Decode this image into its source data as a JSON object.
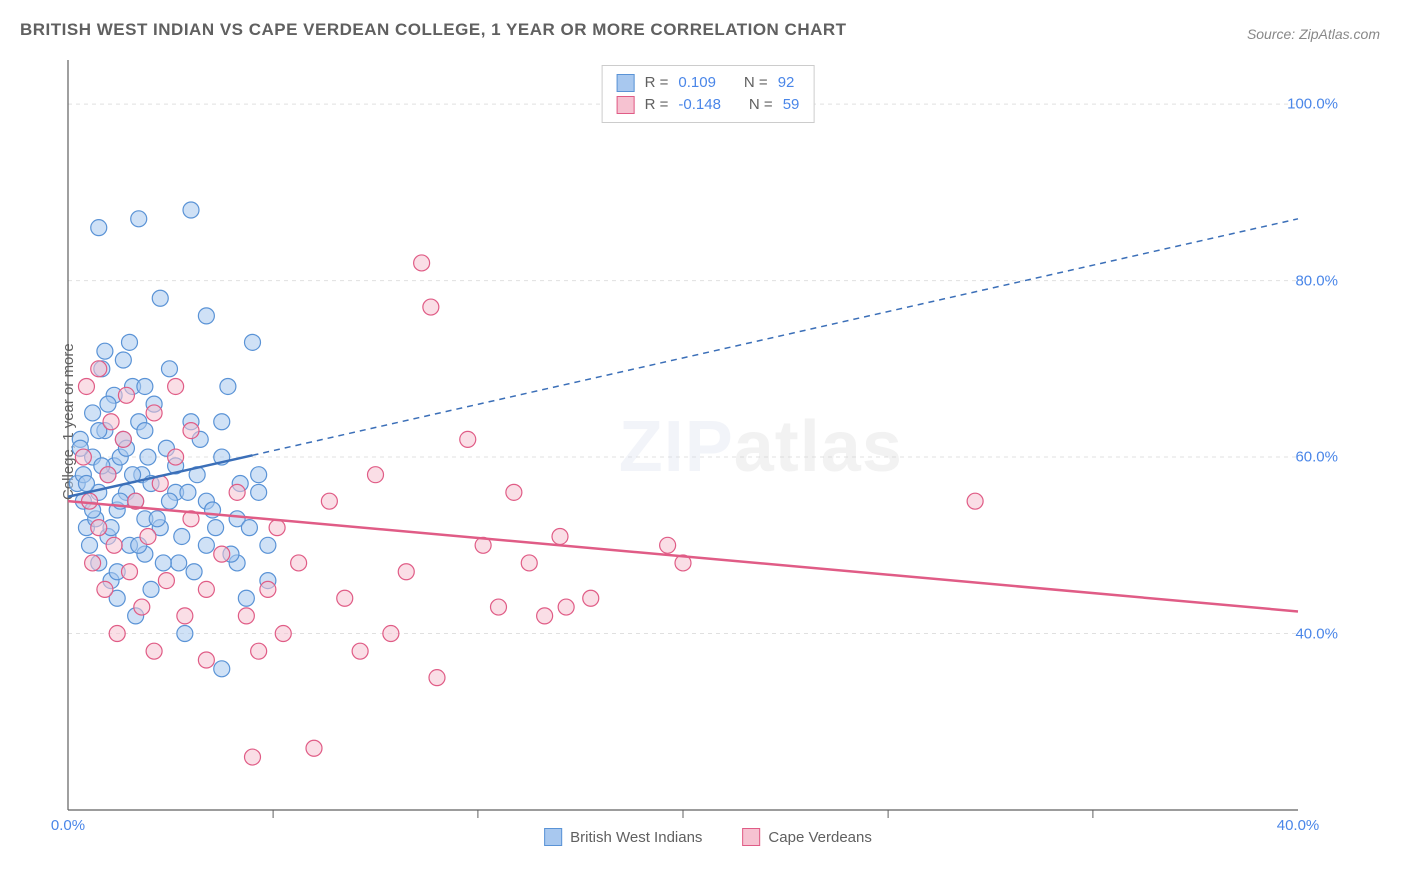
{
  "title": "BRITISH WEST INDIAN VS CAPE VERDEAN COLLEGE, 1 YEAR OR MORE CORRELATION CHART",
  "source": "Source: ZipAtlas.com",
  "ylabel": "College, 1 year or more",
  "watermark_a": "ZIP",
  "watermark_b": "atlas",
  "chart": {
    "type": "scatter",
    "xlim": [
      0,
      40
    ],
    "ylim": [
      20,
      105
    ],
    "y_ticks": [
      40,
      60,
      80,
      100
    ],
    "y_tick_labels": [
      "40.0%",
      "60.0%",
      "80.0%",
      "100.0%"
    ],
    "x_ticks": [
      0,
      40
    ],
    "x_tick_labels": [
      "0.0%",
      "40.0%"
    ],
    "x_minor_ticks": [
      6.67,
      13.33,
      20,
      26.67,
      33.33
    ],
    "grid_color": "#e0e0e0",
    "grid_dash": "4,4",
    "axis_color": "#606060",
    "background": "#ffffff",
    "legend_top": [
      {
        "swatch_fill": "#a8c8ef",
        "swatch_stroke": "#5a93d6",
        "r_label": "R =",
        "r_val": "0.109",
        "n_label": "N =",
        "n_val": "92"
      },
      {
        "swatch_fill": "#f6c2d1",
        "swatch_stroke": "#e05c86",
        "r_label": "R =",
        "r_val": "-0.148",
        "n_label": "N =",
        "n_val": "59"
      }
    ],
    "legend_bottom": [
      {
        "swatch_fill": "#a8c8ef",
        "swatch_stroke": "#5a93d6",
        "label": "British West Indians"
      },
      {
        "swatch_fill": "#f6c2d1",
        "swatch_stroke": "#e05c86",
        "label": "Cape Verdeans"
      }
    ],
    "series": [
      {
        "name": "British West Indians",
        "marker_fill": "#a8c8ef",
        "marker_fill_opacity": 0.55,
        "marker_stroke": "#5a93d6",
        "marker_radius": 8,
        "trend": {
          "x1": 0,
          "y1": 55.5,
          "x2": 6,
          "y2": 60.2,
          "x2_dash_end": 40,
          "y2_dash_end": 87,
          "color": "#3b6fb8",
          "width": 2.5
        },
        "points": [
          [
            0.3,
            57
          ],
          [
            0.4,
            62
          ],
          [
            0.5,
            55
          ],
          [
            0.5,
            58
          ],
          [
            0.6,
            52
          ],
          [
            0.7,
            50
          ],
          [
            0.8,
            65
          ],
          [
            0.8,
            60
          ],
          [
            0.9,
            53
          ],
          [
            1.0,
            56
          ],
          [
            1.0,
            48
          ],
          [
            1.1,
            70
          ],
          [
            1.2,
            72
          ],
          [
            1.2,
            63
          ],
          [
            1.3,
            51
          ],
          [
            1.3,
            58
          ],
          [
            1.4,
            46
          ],
          [
            1.5,
            59
          ],
          [
            1.5,
            67
          ],
          [
            1.6,
            54
          ],
          [
            1.6,
            44
          ],
          [
            1.7,
            60
          ],
          [
            1.8,
            71
          ],
          [
            1.8,
            62
          ],
          [
            1.9,
            56
          ],
          [
            2.0,
            73
          ],
          [
            2.0,
            50
          ],
          [
            2.1,
            68
          ],
          [
            2.2,
            55
          ],
          [
            2.2,
            42
          ],
          [
            2.3,
            87
          ],
          [
            2.3,
            64
          ],
          [
            2.4,
            58
          ],
          [
            2.5,
            53
          ],
          [
            2.5,
            49
          ],
          [
            2.6,
            60
          ],
          [
            2.7,
            45
          ],
          [
            2.8,
            66
          ],
          [
            3.0,
            52
          ],
          [
            3.0,
            78
          ],
          [
            3.2,
            61
          ],
          [
            3.3,
            70
          ],
          [
            3.5,
            56
          ],
          [
            3.6,
            48
          ],
          [
            3.8,
            40
          ],
          [
            4.0,
            88
          ],
          [
            4.0,
            64
          ],
          [
            4.2,
            58
          ],
          [
            4.5,
            76
          ],
          [
            4.5,
            55
          ],
          [
            4.8,
            52
          ],
          [
            5.0,
            60
          ],
          [
            5.0,
            36
          ],
          [
            5.2,
            68
          ],
          [
            5.5,
            53
          ],
          [
            5.5,
            48
          ],
          [
            5.8,
            44
          ],
          [
            6.0,
            73
          ],
          [
            6.2,
            56
          ],
          [
            6.5,
            50
          ],
          [
            0.4,
            61
          ],
          [
            0.6,
            57
          ],
          [
            0.8,
            54
          ],
          [
            1.0,
            63
          ],
          [
            1.1,
            59
          ],
          [
            1.3,
            66
          ],
          [
            1.4,
            52
          ],
          [
            1.6,
            47
          ],
          [
            1.7,
            55
          ],
          [
            1.9,
            61
          ],
          [
            2.1,
            58
          ],
          [
            2.3,
            50
          ],
          [
            2.5,
            63
          ],
          [
            2.7,
            57
          ],
          [
            2.9,
            53
          ],
          [
            3.1,
            48
          ],
          [
            3.3,
            55
          ],
          [
            3.5,
            59
          ],
          [
            3.7,
            51
          ],
          [
            3.9,
            56
          ],
          [
            4.1,
            47
          ],
          [
            4.3,
            62
          ],
          [
            4.5,
            50
          ],
          [
            4.7,
            54
          ],
          [
            5.0,
            64
          ],
          [
            5.3,
            49
          ],
          [
            5.6,
            57
          ],
          [
            5.9,
            52
          ],
          [
            6.2,
            58
          ],
          [
            6.5,
            46
          ],
          [
            1.0,
            86
          ],
          [
            2.5,
            68
          ]
        ]
      },
      {
        "name": "Cape Verdeans",
        "marker_fill": "#f6c2d1",
        "marker_fill_opacity": 0.55,
        "marker_stroke": "#e05c86",
        "marker_radius": 8,
        "trend": {
          "x1": 0,
          "y1": 55.0,
          "x2": 40,
          "y2": 42.5,
          "color": "#e05c86",
          "width": 2.5,
          "solid": true
        },
        "points": [
          [
            0.5,
            60
          ],
          [
            0.7,
            55
          ],
          [
            0.8,
            48
          ],
          [
            1.0,
            52
          ],
          [
            1.2,
            45
          ],
          [
            1.3,
            58
          ],
          [
            1.5,
            50
          ],
          [
            1.6,
            40
          ],
          [
            1.8,
            62
          ],
          [
            2.0,
            47
          ],
          [
            2.2,
            55
          ],
          [
            2.4,
            43
          ],
          [
            2.6,
            51
          ],
          [
            2.8,
            38
          ],
          [
            3.0,
            57
          ],
          [
            3.2,
            46
          ],
          [
            3.5,
            60
          ],
          [
            3.8,
            42
          ],
          [
            4.0,
            53
          ],
          [
            4.5,
            37
          ],
          [
            5.0,
            49
          ],
          [
            5.5,
            56
          ],
          [
            6.0,
            26
          ],
          [
            6.2,
            38
          ],
          [
            6.5,
            45
          ],
          [
            6.8,
            52
          ],
          [
            7.0,
            40
          ],
          [
            7.5,
            48
          ],
          [
            8.0,
            27
          ],
          [
            8.5,
            55
          ],
          [
            9.0,
            44
          ],
          [
            9.5,
            38
          ],
          [
            10.0,
            58
          ],
          [
            10.5,
            40
          ],
          [
            11.0,
            47
          ],
          [
            11.5,
            82
          ],
          [
            11.8,
            77
          ],
          [
            12.0,
            35
          ],
          [
            13.0,
            62
          ],
          [
            13.5,
            50
          ],
          [
            14.0,
            43
          ],
          [
            14.5,
            56
          ],
          [
            15.0,
            48
          ],
          [
            15.5,
            42
          ],
          [
            16.0,
            51
          ],
          [
            16.2,
            43
          ],
          [
            17.0,
            44
          ],
          [
            19.5,
            50
          ],
          [
            20.0,
            48
          ],
          [
            0.6,
            68
          ],
          [
            1.0,
            70
          ],
          [
            1.4,
            64
          ],
          [
            1.9,
            67
          ],
          [
            2.8,
            65
          ],
          [
            3.5,
            68
          ],
          [
            4.0,
            63
          ],
          [
            4.5,
            45
          ],
          [
            29.5,
            55
          ],
          [
            5.8,
            42
          ]
        ]
      }
    ]
  }
}
